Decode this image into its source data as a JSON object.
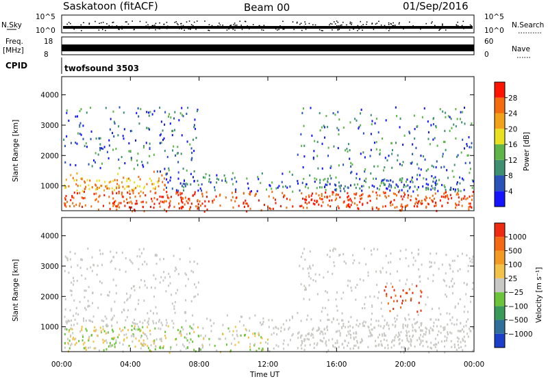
{
  "header": {
    "station": "Saskatoon (fitACF)",
    "beam": "Beam 00",
    "date": "01/Sep/2016"
  },
  "top_panels": {
    "nsky": {
      "label": "N.Sky",
      "tick_top": "10^5",
      "tick_bottom": "10^0",
      "right_tick_top": "10^5",
      "right_tick_bottom": "10^0",
      "right_label": "N.Search"
    },
    "freq": {
      "label_line1": "Freq.",
      "label_line2": "[MHz]",
      "tick_top": "18",
      "tick_bottom": "8",
      "right_tick_top": "60",
      "right_tick_bottom": "0",
      "right_label": "Nave"
    },
    "cpid": {
      "label": "CPID",
      "value": "twofsound 3503"
    }
  },
  "chart_data": [
    {
      "type": "heatmap",
      "panel": "power",
      "ylabel": "Slant Range [km]",
      "xlabel": "Time UT",
      "x_tick_labels": [
        "00:00",
        "04:00",
        "08:00",
        "12:00",
        "16:00",
        "20:00",
        "00:00"
      ],
      "y_tick_labels": [
        "1000",
        "2000",
        "3000",
        "4000"
      ],
      "ylim": [
        180,
        4600
      ],
      "colorbar": {
        "label": "Power [dB]",
        "ticks": [
          "4",
          "8",
          "12",
          "16",
          "20",
          "24",
          "28"
        ],
        "colors": [
          "#1414ff",
          "#2a52b8",
          "#3f8f70",
          "#5fb54a",
          "#e8e020",
          "#f2a21a",
          "#f36d10",
          "#ff1400"
        ]
      }
    },
    {
      "type": "heatmap",
      "panel": "velocity",
      "ylabel": "Slant Range [km]",
      "xlabel": "Time UT",
      "x_tick_labels": [
        "00:00",
        "04:00",
        "08:00",
        "12:00",
        "16:00",
        "20:00",
        "00:00"
      ],
      "y_tick_labels": [
        "1000",
        "2000",
        "3000",
        "4000"
      ],
      "ylim": [
        180,
        4600
      ],
      "colorbar": {
        "label": "Velocity [m s⁻¹]",
        "ticks": [
          "1000",
          "500",
          "100",
          "25",
          "−25",
          "−100",
          "−500",
          "−1000"
        ],
        "colors": [
          "#1c3ec8",
          "#2f6f9a",
          "#3a9a5a",
          "#6cc43a",
          "#c8c8c4",
          "#f3c24a",
          "#f39a22",
          "#f36a12",
          "#ee2a10"
        ]
      }
    }
  ],
  "x_axis_title": "Time UT"
}
